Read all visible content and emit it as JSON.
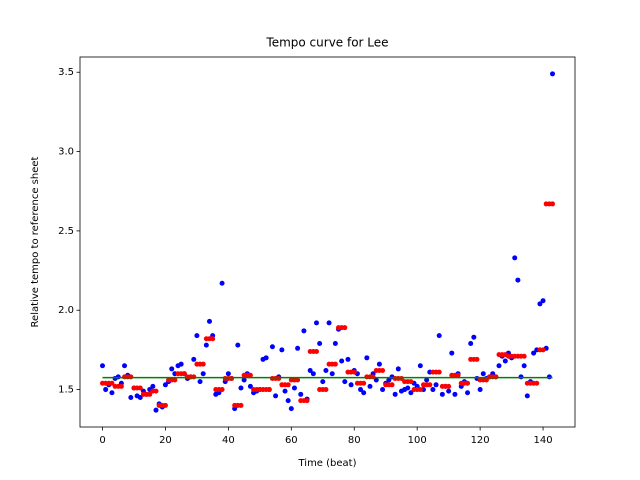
{
  "chart_data": {
    "type": "scatter",
    "title": "Tempo curve for Lee",
    "x_label": "Time (beat)",
    "y_label": "Relative tempo to reference sheet",
    "x": [
      0,
      1,
      2,
      3,
      4,
      5,
      6,
      7,
      8,
      9,
      10,
      11,
      12,
      13,
      14,
      15,
      16,
      17,
      18,
      19,
      20,
      21,
      22,
      23,
      24,
      25,
      26,
      27,
      28,
      29,
      30,
      31,
      32,
      33,
      34,
      35,
      36,
      37,
      38,
      39,
      40,
      41,
      42,
      43,
      44,
      45,
      46,
      47,
      48,
      49,
      50,
      51,
      52,
      53,
      54,
      55,
      56,
      57,
      58,
      59,
      60,
      61,
      62,
      63,
      64,
      65,
      66,
      67,
      68,
      69,
      70,
      71,
      72,
      73,
      74,
      75,
      76,
      77,
      78,
      79,
      80,
      81,
      82,
      83,
      84,
      85,
      86,
      87,
      88,
      89,
      90,
      91,
      92,
      93,
      94,
      95,
      96,
      97,
      98,
      99,
      100,
      101,
      102,
      103,
      104,
      105,
      106,
      107,
      108,
      109,
      110,
      111,
      112,
      113,
      114,
      115,
      116,
      117,
      118,
      119,
      120,
      121,
      122,
      123,
      124,
      125,
      126,
      127,
      128,
      129,
      130,
      131,
      132,
      133,
      134,
      135,
      136,
      137,
      138,
      139,
      140,
      141,
      142,
      143
    ],
    "series": [
      {
        "color": "#0000ff",
        "style": "points",
        "values": [
          1.65,
          1.5,
          1.53,
          1.48,
          1.57,
          1.58,
          1.54,
          1.65,
          1.59,
          1.45,
          1.51,
          1.46,
          1.45,
          1.49,
          1.47,
          1.5,
          1.52,
          1.37,
          1.41,
          1.39,
          1.53,
          1.55,
          1.63,
          1.6,
          1.65,
          1.66,
          1.6,
          1.57,
          1.58,
          1.69,
          1.84,
          1.55,
          1.6,
          1.78,
          1.93,
          1.84,
          1.47,
          1.48,
          2.17,
          1.55,
          1.6,
          1.57,
          1.38,
          1.78,
          1.51,
          1.56,
          1.6,
          1.52,
          1.48,
          1.49,
          1.5,
          1.69,
          1.7,
          1.5,
          1.77,
          1.46,
          1.58,
          1.75,
          1.49,
          1.43,
          1.38,
          1.51,
          1.76,
          1.47,
          1.87,
          1.44,
          1.62,
          1.6,
          1.92,
          1.79,
          1.55,
          1.62,
          1.92,
          1.6,
          1.79,
          1.88,
          1.68,
          1.55,
          1.69,
          1.53,
          1.62,
          1.6,
          1.5,
          1.48,
          1.7,
          1.52,
          1.6,
          1.56,
          1.66,
          1.5,
          1.54,
          1.56,
          1.58,
          1.47,
          1.63,
          1.49,
          1.5,
          1.51,
          1.48,
          1.54,
          1.52,
          1.65,
          1.5,
          1.56,
          1.61,
          1.5,
          1.53,
          1.84,
          1.47,
          1.52,
          1.49,
          1.73,
          1.47,
          1.6,
          1.52,
          1.55,
          1.48,
          1.79,
          1.83,
          1.57,
          1.5,
          1.6,
          1.57,
          1.58,
          1.6,
          1.58,
          1.65,
          1.71,
          1.68,
          1.73,
          1.7,
          2.33,
          2.19,
          1.58,
          1.65,
          1.46,
          1.55,
          1.73,
          1.75,
          2.04,
          2.06,
          1.76,
          1.58,
          3.49
        ]
      },
      {
        "color": "#ff0000",
        "style": "points",
        "values": [
          1.54,
          1.54,
          1.54,
          1.54,
          1.52,
          1.52,
          1.52,
          1.58,
          1.58,
          1.58,
          1.51,
          1.51,
          1.51,
          1.47,
          1.47,
          1.47,
          1.49,
          1.49,
          1.4,
          1.4,
          1.4,
          1.56,
          1.56,
          1.56,
          1.6,
          1.6,
          1.6,
          1.58,
          1.58,
          1.58,
          1.66,
          1.66,
          1.66,
          1.82,
          1.82,
          1.82,
          1.5,
          1.5,
          1.5,
          1.57,
          1.57,
          1.57,
          1.4,
          1.4,
          1.4,
          1.59,
          1.59,
          1.59,
          1.5,
          1.5,
          1.5,
          1.5,
          1.5,
          1.5,
          1.57,
          1.57,
          1.57,
          1.53,
          1.53,
          1.53,
          1.56,
          1.56,
          1.56,
          1.43,
          1.43,
          1.43,
          1.74,
          1.74,
          1.74,
          1.5,
          1.5,
          1.5,
          1.66,
          1.66,
          1.66,
          1.89,
          1.89,
          1.89,
          1.61,
          1.61,
          1.61,
          1.54,
          1.54,
          1.54,
          1.58,
          1.58,
          1.58,
          1.62,
          1.62,
          1.62,
          1.53,
          1.53,
          1.53,
          1.57,
          1.57,
          1.57,
          1.55,
          1.55,
          1.55,
          1.5,
          1.5,
          1.5,
          1.53,
          1.53,
          1.53,
          1.61,
          1.61,
          1.61,
          1.52,
          1.52,
          1.52,
          1.59,
          1.59,
          1.59,
          1.54,
          1.54,
          1.54,
          1.69,
          1.69,
          1.69,
          1.56,
          1.56,
          1.56,
          1.58,
          1.58,
          1.58,
          1.72,
          1.72,
          1.72,
          1.71,
          1.71,
          1.71,
          1.71,
          1.71,
          1.71,
          1.54,
          1.54,
          1.54,
          1.54,
          1.75,
          1.75,
          2.67,
          2.67,
          2.67
        ]
      },
      {
        "color": "#008000",
        "style": "line",
        "x": [
          0,
          143
        ],
        "values": [
          1.575,
          1.575
        ]
      }
    ],
    "xlim": [
      -7.15,
      150.15
    ],
    "ylim": [
      1.264,
      3.596
    ],
    "xticks": [
      0,
      20,
      40,
      60,
      80,
      100,
      120,
      140
    ],
    "yticks": [
      1.5,
      {
        "value": 2,
        "label": "2.0"
      },
      2.5,
      {
        "value": 3,
        "label": "3.0"
      },
      3.5
    ]
  }
}
